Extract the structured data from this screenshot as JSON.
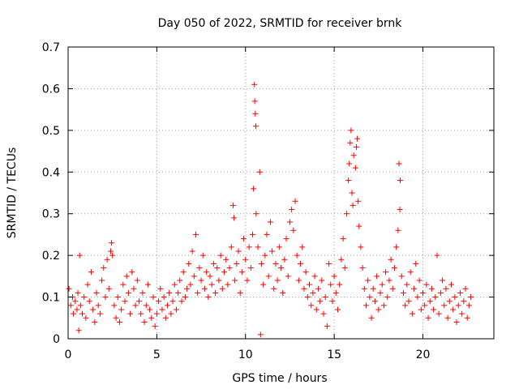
{
  "chart_data": {
    "type": "scatter",
    "title": "Day 050 of 2022, SRMTID for receiver brnk",
    "xlabel": "GPS time / hours",
    "ylabel": "SRMTID / TECUs",
    "xlim": [
      0,
      24
    ],
    "ylim": [
      0,
      0.7
    ],
    "x_ticks": [
      "0",
      "5",
      "10",
      "15",
      "20"
    ],
    "y_ticks": [
      "0",
      "0.1",
      "0.2",
      "0.3",
      "0.4",
      "0.5",
      "0.6",
      "0.7"
    ],
    "grid": true,
    "marker": "+",
    "color": "#ff0000",
    "series": [
      {
        "name": "SRMTID",
        "points": [
          [
            0.05,
            0.12
          ],
          [
            0.15,
            0.08
          ],
          [
            0.25,
            0.1
          ],
          [
            0.3,
            0.06
          ],
          [
            0.4,
            0.09
          ],
          [
            0.5,
            0.07
          ],
          [
            0.55,
            0.11
          ],
          [
            0.6,
            0.02
          ],
          [
            0.65,
            0.2
          ],
          [
            0.7,
            0.08
          ],
          [
            0.8,
            0.06
          ],
          [
            0.9,
            0.1
          ],
          [
            1.0,
            0.05
          ],
          [
            1.1,
            0.13
          ],
          [
            1.2,
            0.09
          ],
          [
            1.3,
            0.16
          ],
          [
            1.4,
            0.07
          ],
          [
            1.5,
            0.04
          ],
          [
            1.6,
            0.11
          ],
          [
            1.7,
            0.08
          ],
          [
            1.8,
            0.06
          ],
          [
            1.9,
            0.14
          ],
          [
            2.0,
            0.17
          ],
          [
            2.1,
            0.1
          ],
          [
            2.2,
            0.19
          ],
          [
            2.3,
            0.12
          ],
          [
            2.4,
            0.21
          ],
          [
            2.45,
            0.23
          ],
          [
            2.5,
            0.2
          ],
          [
            2.6,
            0.08
          ],
          [
            2.7,
            0.05
          ],
          [
            2.8,
            0.1
          ],
          [
            2.9,
            0.04
          ],
          [
            3.0,
            0.07
          ],
          [
            3.1,
            0.13
          ],
          [
            3.2,
            0.09
          ],
          [
            3.3,
            0.15
          ],
          [
            3.4,
            0.11
          ],
          [
            3.5,
            0.06
          ],
          [
            3.6,
            0.16
          ],
          [
            3.7,
            0.12
          ],
          [
            3.8,
            0.08
          ],
          [
            3.9,
            0.14
          ],
          [
            4.0,
            0.09
          ],
          [
            4.1,
            0.06
          ],
          [
            4.2,
            0.11
          ],
          [
            4.3,
            0.04
          ],
          [
            4.4,
            0.08
          ],
          [
            4.5,
            0.13
          ],
          [
            4.6,
            0.07
          ],
          [
            4.7,
            0.05
          ],
          [
            4.8,
            0.1
          ],
          [
            4.9,
            0.03
          ],
          [
            5.0,
            0.06
          ],
          [
            5.1,
            0.09
          ],
          [
            5.2,
            0.12
          ],
          [
            5.3,
            0.07
          ],
          [
            5.4,
            0.1
          ],
          [
            5.5,
            0.05
          ],
          [
            5.6,
            0.08
          ],
          [
            5.7,
            0.11
          ],
          [
            5.8,
            0.06
          ],
          [
            5.9,
            0.09
          ],
          [
            6.0,
            0.13
          ],
          [
            6.1,
            0.07
          ],
          [
            6.2,
            0.11
          ],
          [
            6.3,
            0.14
          ],
          [
            6.4,
            0.09
          ],
          [
            6.5,
            0.16
          ],
          [
            6.6,
            0.1
          ],
          [
            6.7,
            0.12
          ],
          [
            6.8,
            0.18
          ],
          [
            6.9,
            0.13
          ],
          [
            7.0,
            0.21
          ],
          [
            7.1,
            0.15
          ],
          [
            7.2,
            0.25
          ],
          [
            7.3,
            0.11
          ],
          [
            7.4,
            0.17
          ],
          [
            7.5,
            0.14
          ],
          [
            7.6,
            0.2
          ],
          [
            7.7,
            0.12
          ],
          [
            7.8,
            0.16
          ],
          [
            7.9,
            0.1
          ],
          [
            8.0,
            0.15
          ],
          [
            8.1,
            0.13
          ],
          [
            8.2,
            0.18
          ],
          [
            8.3,
            0.11
          ],
          [
            8.4,
            0.17
          ],
          [
            8.5,
            0.14
          ],
          [
            8.6,
            0.2
          ],
          [
            8.7,
            0.12
          ],
          [
            8.8,
            0.16
          ],
          [
            8.9,
            0.19
          ],
          [
            9.0,
            0.13
          ],
          [
            9.1,
            0.17
          ],
          [
            9.2,
            0.22
          ],
          [
            9.3,
            0.32
          ],
          [
            9.35,
            0.29
          ],
          [
            9.4,
            0.14
          ],
          [
            9.5,
            0.18
          ],
          [
            9.6,
            0.21
          ],
          [
            9.7,
            0.11
          ],
          [
            9.8,
            0.16
          ],
          [
            9.9,
            0.24
          ],
          [
            10.0,
            0.19
          ],
          [
            10.1,
            0.14
          ],
          [
            10.2,
            0.22
          ],
          [
            10.3,
            0.17
          ],
          [
            10.4,
            0.25
          ],
          [
            10.45,
            0.36
          ],
          [
            10.5,
            0.61
          ],
          [
            10.52,
            0.57
          ],
          [
            10.55,
            0.54
          ],
          [
            10.58,
            0.51
          ],
          [
            10.6,
            0.3
          ],
          [
            10.7,
            0.22
          ],
          [
            10.8,
            0.4
          ],
          [
            10.85,
            0.01
          ],
          [
            10.9,
            0.18
          ],
          [
            11.0,
            0.13
          ],
          [
            11.1,
            0.2
          ],
          [
            11.2,
            0.25
          ],
          [
            11.3,
            0.15
          ],
          [
            11.4,
            0.28
          ],
          [
            11.5,
            0.21
          ],
          [
            11.6,
            0.12
          ],
          [
            11.7,
            0.18
          ],
          [
            11.8,
            0.14
          ],
          [
            11.9,
            0.22
          ],
          [
            12.0,
            0.17
          ],
          [
            12.1,
            0.11
          ],
          [
            12.2,
            0.19
          ],
          [
            12.3,
            0.24
          ],
          [
            12.4,
            0.15
          ],
          [
            12.5,
            0.28
          ],
          [
            12.6,
            0.31
          ],
          [
            12.7,
            0.26
          ],
          [
            12.8,
            0.33
          ],
          [
            12.9,
            0.2
          ],
          [
            13.0,
            0.14
          ],
          [
            13.1,
            0.18
          ],
          [
            13.2,
            0.22
          ],
          [
            13.3,
            0.12
          ],
          [
            13.4,
            0.16
          ],
          [
            13.5,
            0.1
          ],
          [
            13.6,
            0.13
          ],
          [
            13.7,
            0.08
          ],
          [
            13.8,
            0.11
          ],
          [
            13.9,
            0.15
          ],
          [
            14.0,
            0.07
          ],
          [
            14.1,
            0.12
          ],
          [
            14.2,
            0.09
          ],
          [
            14.3,
            0.14
          ],
          [
            14.4,
            0.06
          ],
          [
            14.5,
            0.1
          ],
          [
            14.6,
            0.03
          ],
          [
            14.7,
            0.18
          ],
          [
            14.8,
            0.13
          ],
          [
            14.9,
            0.09
          ],
          [
            15.0,
            0.15
          ],
          [
            15.1,
            0.11
          ],
          [
            15.2,
            0.07
          ],
          [
            15.3,
            0.13
          ],
          [
            15.4,
            0.19
          ],
          [
            15.5,
            0.24
          ],
          [
            15.6,
            0.17
          ],
          [
            15.7,
            0.3
          ],
          [
            15.8,
            0.38
          ],
          [
            15.85,
            0.42
          ],
          [
            15.9,
            0.47
          ],
          [
            15.95,
            0.5
          ],
          [
            16.0,
            0.35
          ],
          [
            16.05,
            0.32
          ],
          [
            16.1,
            0.44
          ],
          [
            16.2,
            0.41
          ],
          [
            16.25,
            0.46
          ],
          [
            16.3,
            0.48
          ],
          [
            16.35,
            0.33
          ],
          [
            16.4,
            0.27
          ],
          [
            16.5,
            0.22
          ],
          [
            16.6,
            0.17
          ],
          [
            16.7,
            0.12
          ],
          [
            16.8,
            0.08
          ],
          [
            16.9,
            0.14
          ],
          [
            17.0,
            0.1
          ],
          [
            17.1,
            0.05
          ],
          [
            17.2,
            0.12
          ],
          [
            17.3,
            0.09
          ],
          [
            17.4,
            0.15
          ],
          [
            17.5,
            0.07
          ],
          [
            17.6,
            0.11
          ],
          [
            17.7,
            0.13
          ],
          [
            17.8,
            0.08
          ],
          [
            17.9,
            0.16
          ],
          [
            18.0,
            0.1
          ],
          [
            18.1,
            0.14
          ],
          [
            18.2,
            0.19
          ],
          [
            18.3,
            0.12
          ],
          [
            18.4,
            0.17
          ],
          [
            18.5,
            0.22
          ],
          [
            18.6,
            0.26
          ],
          [
            18.65,
            0.42
          ],
          [
            18.7,
            0.31
          ],
          [
            18.72,
            0.38
          ],
          [
            18.8,
            0.15
          ],
          [
            18.9,
            0.11
          ],
          [
            19.0,
            0.08
          ],
          [
            19.1,
            0.13
          ],
          [
            19.2,
            0.09
          ],
          [
            19.3,
            0.16
          ],
          [
            19.4,
            0.06
          ],
          [
            19.5,
            0.12
          ],
          [
            19.6,
            0.18
          ],
          [
            19.7,
            0.1
          ],
          [
            19.8,
            0.14
          ],
          [
            19.9,
            0.07
          ],
          [
            20.0,
            0.11
          ],
          [
            20.1,
            0.08
          ],
          [
            20.2,
            0.13
          ],
          [
            20.3,
            0.05
          ],
          [
            20.4,
            0.09
          ],
          [
            20.5,
            0.12
          ],
          [
            20.6,
            0.07
          ],
          [
            20.7,
            0.1
          ],
          [
            20.8,
            0.2
          ],
          [
            20.9,
            0.06
          ],
          [
            21.0,
            0.11
          ],
          [
            21.1,
            0.14
          ],
          [
            21.2,
            0.08
          ],
          [
            21.3,
            0.12
          ],
          [
            21.4,
            0.05
          ],
          [
            21.5,
            0.09
          ],
          [
            21.6,
            0.13
          ],
          [
            21.7,
            0.07
          ],
          [
            21.8,
            0.1
          ],
          [
            21.9,
            0.04
          ],
          [
            22.0,
            0.08
          ],
          [
            22.1,
            0.11
          ],
          [
            22.2,
            0.06
          ],
          [
            22.3,
            0.09
          ],
          [
            22.4,
            0.12
          ],
          [
            22.5,
            0.05
          ],
          [
            22.6,
            0.08
          ],
          [
            22.7,
            0.1
          ]
        ]
      }
    ]
  }
}
